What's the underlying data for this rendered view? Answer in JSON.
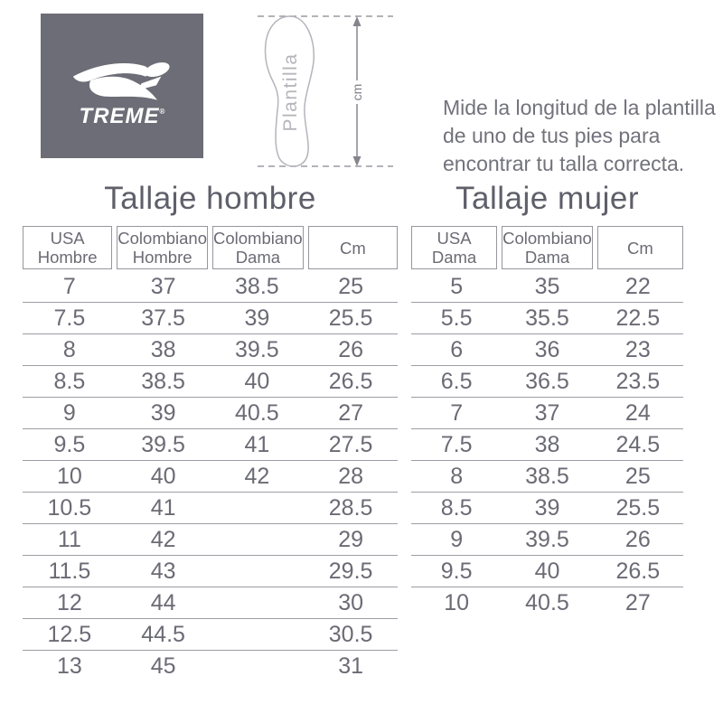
{
  "logo": {
    "brand_text": "TREME",
    "registered_mark": "®",
    "square_color": "#6d6d77",
    "swoosh_icon": "xtreme-swoosh-icon"
  },
  "diagram": {
    "insole_label": "Plantilla",
    "unit_label": "cm"
  },
  "instruction": {
    "text": "Mide la longitud de la plantilla\nde uno de tus pies para\nencontrar tu talla correcta."
  },
  "colors": {
    "text_gray": "#6b6b75",
    "title_gray": "#5f5f6a",
    "line_gray": "#9d9da5",
    "outline_gray": "#b4b4bc",
    "logo_square": "#6d6d77"
  },
  "tables": {
    "men": {
      "title": "Tallaje hombre",
      "columns": [
        "USA\nHombre",
        "Colombiano\nHombre",
        "Colombiano\nDama",
        "Cm"
      ],
      "rows": [
        [
          "7",
          "37",
          "38.5",
          "25"
        ],
        [
          "7.5",
          "37.5",
          "39",
          "25.5"
        ],
        [
          "8",
          "38",
          "39.5",
          "26"
        ],
        [
          "8.5",
          "38.5",
          "40",
          "26.5"
        ],
        [
          "9",
          "39",
          "40.5",
          "27"
        ],
        [
          "9.5",
          "39.5",
          "41",
          "27.5"
        ],
        [
          "10",
          "40",
          "42",
          "28"
        ],
        [
          "10.5",
          "41",
          "",
          "28.5"
        ],
        [
          "11",
          "42",
          "",
          "29"
        ],
        [
          "11.5",
          "43",
          "",
          "29.5"
        ],
        [
          "12",
          "44",
          "",
          "30"
        ],
        [
          "12.5",
          "44.5",
          "",
          "30.5"
        ],
        [
          "13",
          "45",
          "",
          "31"
        ]
      ]
    },
    "women": {
      "title": "Tallaje mujer",
      "columns": [
        "USA\nDama",
        "Colombiano\nDama",
        "Cm"
      ],
      "rows": [
        [
          "5",
          "35",
          "22"
        ],
        [
          "5.5",
          "35.5",
          "22.5"
        ],
        [
          "6",
          "36",
          "23"
        ],
        [
          "6.5",
          "36.5",
          "23.5"
        ],
        [
          "7",
          "37",
          "24"
        ],
        [
          "7.5",
          "38",
          "24.5"
        ],
        [
          "8",
          "38.5",
          "25"
        ],
        [
          "8.5",
          "39",
          "25.5"
        ],
        [
          "9",
          "39.5",
          "26"
        ],
        [
          "9.5",
          "40",
          "26.5"
        ],
        [
          "10",
          "40.5",
          "27"
        ]
      ]
    }
  }
}
